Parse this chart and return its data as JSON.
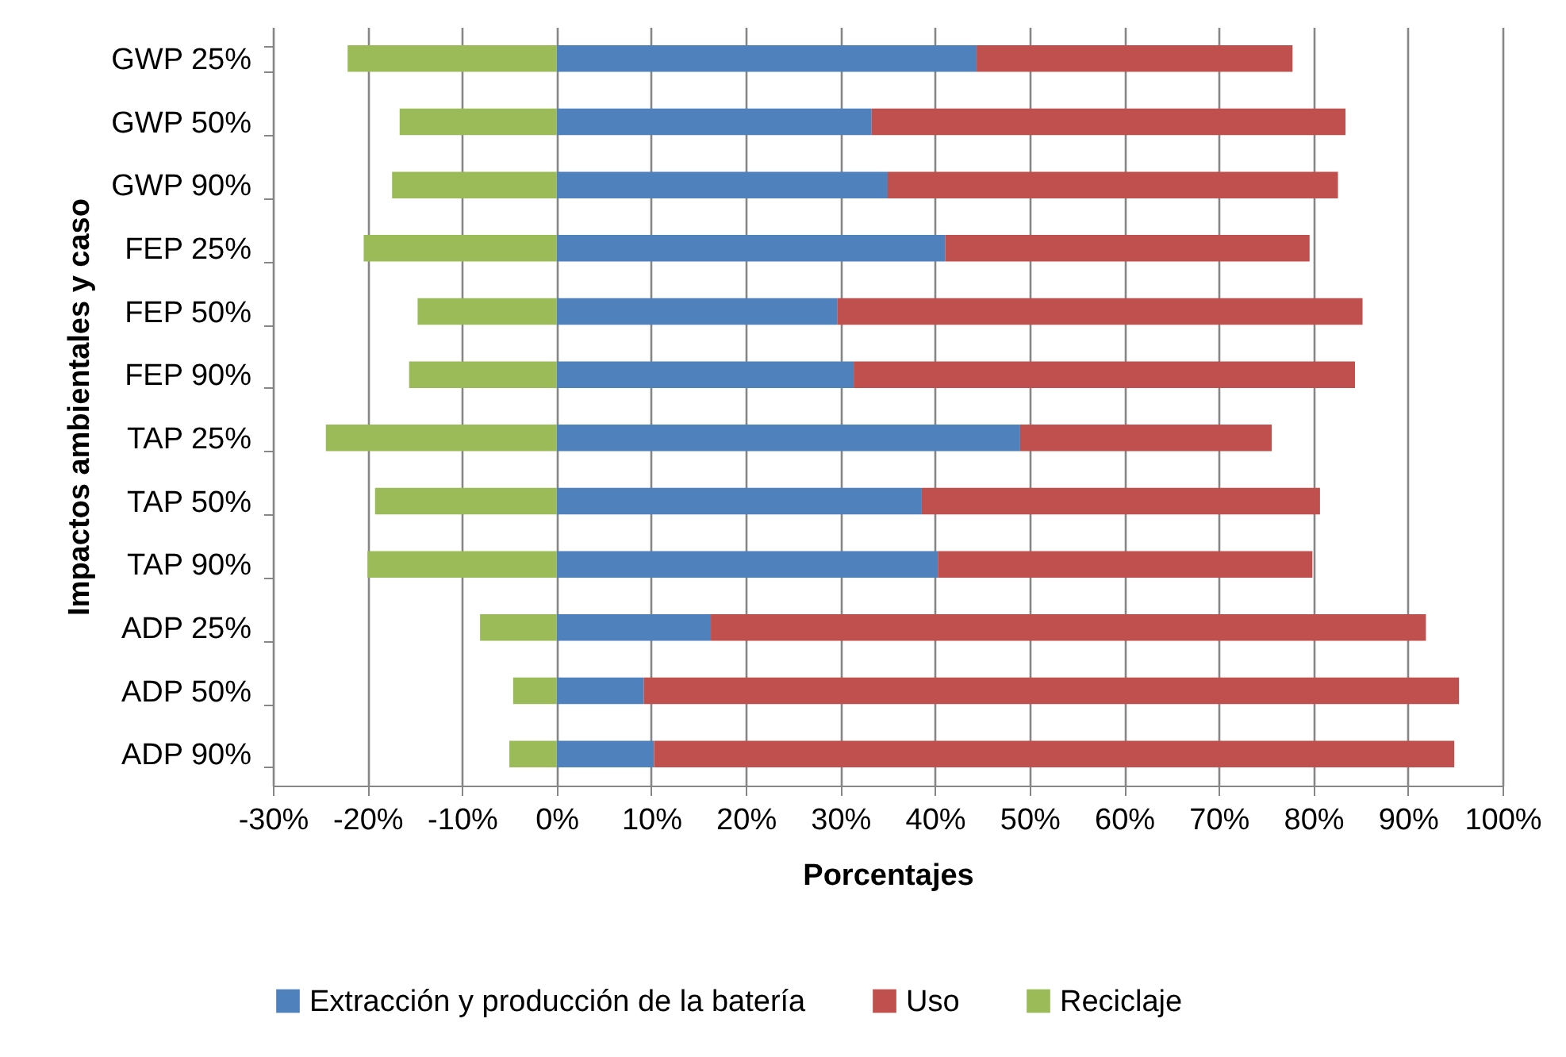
{
  "chart_data": {
    "type": "bar",
    "orientation": "horizontal",
    "stacked": true,
    "xlabel": "Porcentajes",
    "ylabel": "Impactos ambientales y caso",
    "categories": [
      "GWP 25%",
      "GWP 50%",
      "GWP 90%",
      "FEP 25%",
      "FEP 50%",
      "FEP 90%",
      "TAP 25%",
      "TAP 50%",
      "TAP 90%",
      "ADP 25%",
      "ADP 50%",
      "ADP 90%"
    ],
    "series": [
      {
        "name": "Extracción y producción de la batería",
        "color": "#4f81bd",
        "values": [
          44.4,
          33.3,
          35.0,
          41.1,
          29.7,
          31.4,
          49.0,
          38.6,
          40.3,
          16.3,
          9.2,
          10.3
        ]
      },
      {
        "name": "Uso",
        "color": "#c0504d",
        "values": [
          33.4,
          50.1,
          47.6,
          38.5,
          55.5,
          53.0,
          26.6,
          42.1,
          39.6,
          75.6,
          86.2,
          84.6
        ]
      },
      {
        "name": "Reciclaje",
        "color": "#9bbb59",
        "values": [
          -22.1,
          -16.6,
          -17.4,
          -20.4,
          -14.7,
          -15.6,
          -24.4,
          -19.2,
          -20.0,
          -8.1,
          -4.6,
          -5.0
        ]
      }
    ],
    "xlim": [
      -30,
      100
    ],
    "xticks": [
      {
        "value": -30,
        "label": "-30%"
      },
      {
        "value": -20,
        "label": "-20%"
      },
      {
        "value": -10,
        "label": "-10%"
      },
      {
        "value": 0,
        "label": "0%"
      },
      {
        "value": 10,
        "label": "10%"
      },
      {
        "value": 20,
        "label": "20%"
      },
      {
        "value": 30,
        "label": "30%"
      },
      {
        "value": 40,
        "label": "40%"
      },
      {
        "value": 50,
        "label": "50%"
      },
      {
        "value": 60,
        "label": "60%"
      },
      {
        "value": 70,
        "label": "70%"
      },
      {
        "value": 80,
        "label": "80%"
      },
      {
        "value": 90,
        "label": "90%"
      },
      {
        "value": 100,
        "label": "100%"
      }
    ],
    "grid": "x",
    "legend": "bottom"
  }
}
